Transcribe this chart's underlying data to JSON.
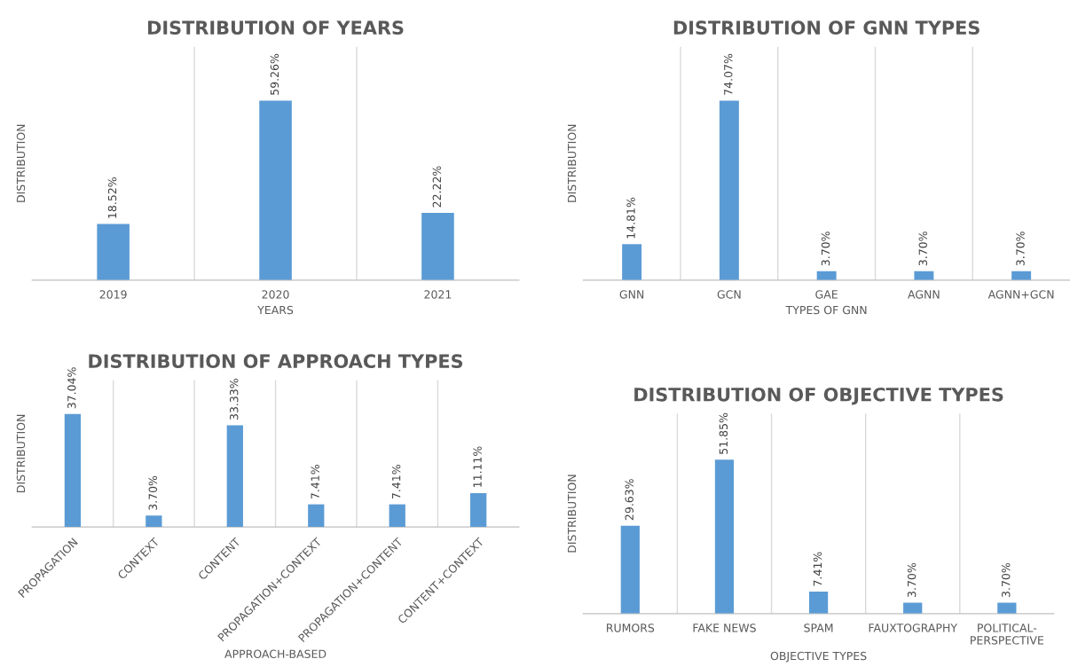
{
  "chart_data": [
    {
      "type": "bar",
      "title": "DISTRIBUTION OF YEARS",
      "xlabel": "YEARS",
      "ylabel": "DISTRIBUTION",
      "categories": [
        "2019",
        "2020",
        "2021"
      ],
      "values": [
        18.52,
        59.26,
        22.22
      ],
      "value_labels": [
        "18.52%",
        "59.26%",
        "22.22%"
      ],
      "color": "#5b9bd5",
      "grid": "x",
      "tick_labels": "x"
    },
    {
      "type": "bar",
      "title": "DISTRIBUTION OF GNN TYPES",
      "xlabel": "TYPES OF GNN",
      "ylabel": "DISTRIBUTION",
      "categories": [
        "GNN",
        "GCN",
        "GAE",
        "AGNN",
        "AGNN+GCN"
      ],
      "values": [
        14.81,
        74.07,
        3.7,
        3.7,
        3.7
      ],
      "value_labels": [
        "14.81%",
        "74.07%",
        "3.70%",
        "3.70%",
        "3.70%"
      ],
      "color": "#5b9bd5",
      "grid": "x",
      "tick_labels": "x"
    },
    {
      "type": "bar",
      "title": "DISTRIBUTION OF APPROACH TYPES",
      "xlabel": "APPROACH-BASED",
      "ylabel": "DISTRIBUTION",
      "categories": [
        "PROPAGATION",
        "CONTEXT",
        "CONTENT",
        "PROPAGATION+CONTEXT",
        "PROPAGATION+CONTENT",
        "CONTENT+CONTEXT"
      ],
      "values": [
        37.04,
        3.7,
        33.33,
        7.41,
        7.41,
        11.11
      ],
      "value_labels": [
        "37.04%",
        "3.70%",
        "33.33%",
        "7.41%",
        "7.41%",
        "11.11%"
      ],
      "color": "#5b9bd5",
      "grid": "x",
      "tick_labels": "x"
    },
    {
      "type": "bar",
      "title": "DISTRIBUTION OF OBJECTIVE TYPES",
      "xlabel": "OBJECTIVE TYPES",
      "ylabel": "DISTRIBUTION",
      "categories": [
        "RUMORS",
        "FAKE NEWS",
        "SPAM",
        "FAUXTOGRAPHY",
        "POLITICAL-\nPERSPECTIVE"
      ],
      "values": [
        29.63,
        51.85,
        7.41,
        3.7,
        3.7
      ],
      "value_labels": [
        "29.63%",
        "51.85%",
        "7.41%",
        "3.70%",
        "3.70%"
      ],
      "color": "#5b9bd5",
      "grid": "x",
      "tick_labels": "x"
    }
  ]
}
